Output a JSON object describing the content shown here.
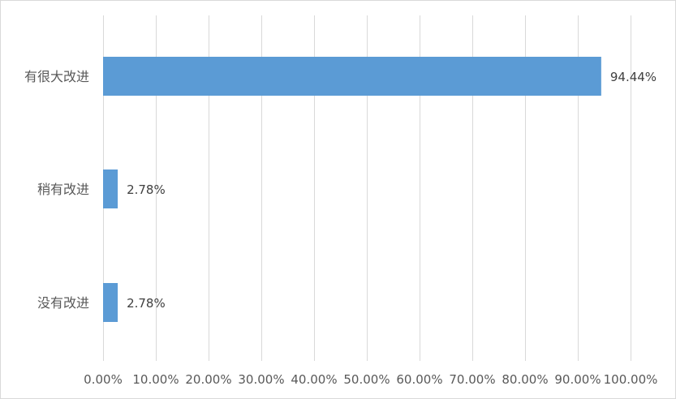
{
  "chart_data": {
    "type": "bar",
    "orientation": "horizontal",
    "categories": [
      "有很大改进",
      "稍有改进",
      "没有改进"
    ],
    "values": [
      94.44,
      2.78,
      2.78
    ],
    "data_labels": [
      "94.44%",
      "2.78%",
      "2.78%"
    ],
    "xlim": [
      0,
      100
    ],
    "x_ticks": [
      0,
      10,
      20,
      30,
      40,
      50,
      60,
      70,
      80,
      90,
      100
    ],
    "x_tick_labels": [
      "0.00%",
      "10.00%",
      "20.00%",
      "30.00%",
      "40.00%",
      "50.00%",
      "60.00%",
      "70.00%",
      "80.00%",
      "90.00%",
      "100.00%"
    ],
    "title": "",
    "xlabel": "",
    "ylabel": "",
    "grid": "vertical",
    "legend": "none",
    "colors": {
      "bar": "#5b9bd5",
      "gridline": "#d9d9d9",
      "text": "#595959"
    }
  }
}
